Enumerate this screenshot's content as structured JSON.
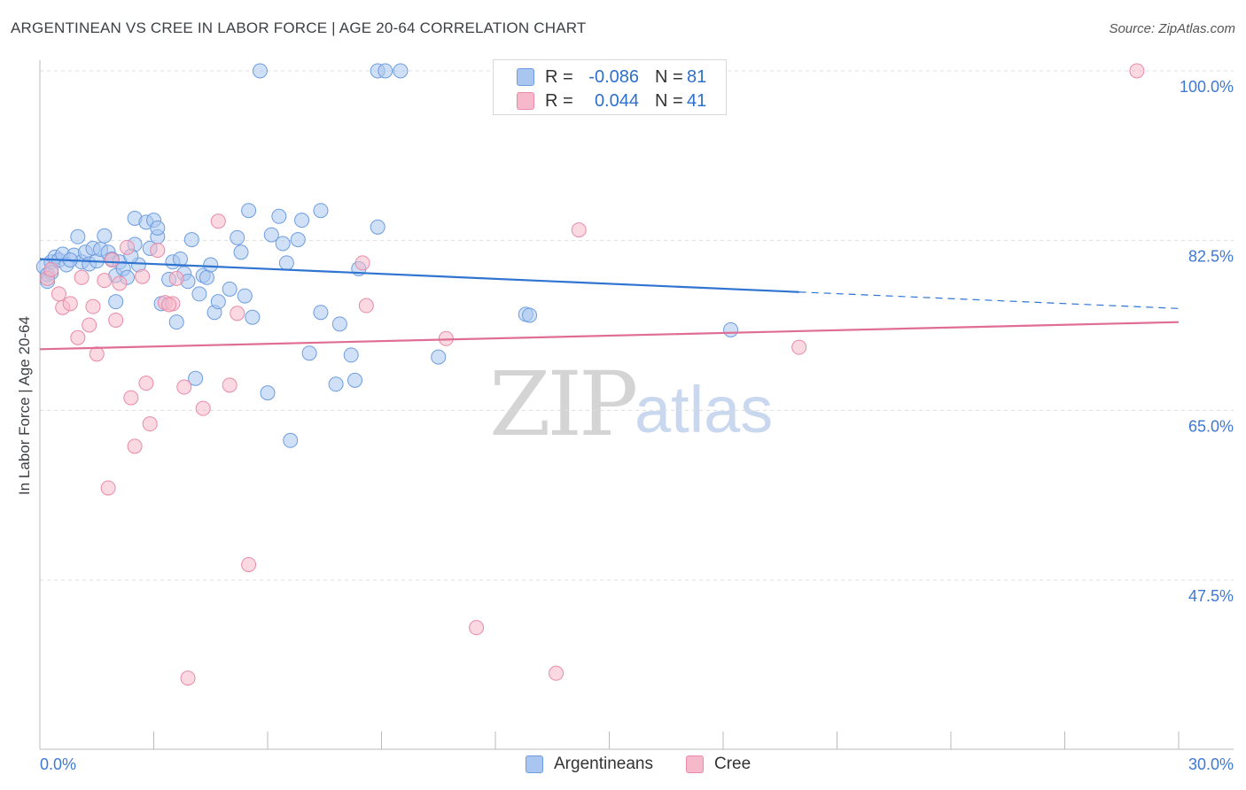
{
  "title": "ARGENTINEAN VS CREE IN LABOR FORCE | AGE 20-64 CORRELATION CHART",
  "source": "Source: ZipAtlas.com",
  "colors": {
    "blue_fill": "#a9c6f0",
    "blue_stroke": "#6d9de0",
    "blue_line": "#2f74d0",
    "pink_fill": "#f5b9cb",
    "pink_stroke": "#e98aa8",
    "pink_line": "#e06d92",
    "tick_label": "#3f78d1",
    "grid": "#dddddd"
  },
  "legend": {
    "rows": [
      {
        "r_label": "R =",
        "r_value": "-0.086",
        "n_label": "N =",
        "n_value": "81"
      },
      {
        "r_label": "R =",
        "r_value": "0.044",
        "n_label": "N =",
        "n_value": "41"
      }
    ]
  },
  "series_labels": {
    "blue": "Argentineans",
    "pink": "Cree"
  },
  "watermark": {
    "zip": "ZIP",
    "atlas": "atlas"
  },
  "chart_data": {
    "type": "scatter",
    "title": "ARGENTINEAN VS CREE IN LABOR FORCE | AGE 20-64 CORRELATION CHART",
    "xlabel": "",
    "ylabel": "In Labor Force | Age 20-64",
    "xlim": [
      0,
      30
    ],
    "ylim": [
      32,
      102
    ],
    "x_tick_labels": [
      "0.0%",
      "30.0%"
    ],
    "y_ticks": [
      47.5,
      65.0,
      82.5,
      100.0
    ],
    "y_tick_labels": [
      "47.5%",
      "65.0%",
      "82.5%",
      "100.0%"
    ],
    "series": [
      {
        "name": "Argentineans",
        "r": -0.086,
        "n": 81,
        "trend": {
          "x0": 0,
          "y0": 80.6,
          "x1": 20.0,
          "y1": 77.2,
          "dash_to_x": 30,
          "dash_to_y": 75.5
        },
        "points": [
          [
            0.1,
            79.8
          ],
          [
            0.2,
            79.0
          ],
          [
            0.3,
            80.3
          ],
          [
            0.4,
            80.8
          ],
          [
            0.5,
            80.5
          ],
          [
            0.3,
            79.2
          ],
          [
            0.6,
            81.1
          ],
          [
            0.7,
            80.0
          ],
          [
            0.9,
            81.0
          ],
          [
            1.0,
            82.9
          ],
          [
            1.1,
            80.3
          ],
          [
            1.2,
            81.3
          ],
          [
            1.3,
            80.1
          ],
          [
            1.4,
            81.7
          ],
          [
            1.5,
            80.4
          ],
          [
            1.6,
            81.6
          ],
          [
            1.7,
            83.0
          ],
          [
            1.8,
            81.3
          ],
          [
            1.9,
            80.6
          ],
          [
            2.0,
            78.9
          ],
          [
            2.0,
            76.2
          ],
          [
            2.1,
            80.3
          ],
          [
            2.2,
            79.6
          ],
          [
            2.3,
            78.7
          ],
          [
            2.5,
            82.1
          ],
          [
            2.6,
            80.0
          ],
          [
            2.5,
            84.8
          ],
          [
            2.8,
            84.4
          ],
          [
            2.9,
            81.7
          ],
          [
            3.0,
            84.6
          ],
          [
            3.1,
            82.9
          ],
          [
            3.1,
            83.8
          ],
          [
            3.2,
            76.0
          ],
          [
            3.4,
            78.5
          ],
          [
            3.5,
            80.3
          ],
          [
            3.6,
            74.1
          ],
          [
            3.7,
            80.6
          ],
          [
            3.8,
            79.1
          ],
          [
            3.9,
            78.3
          ],
          [
            4.0,
            82.6
          ],
          [
            4.1,
            68.3
          ],
          [
            4.2,
            77.0
          ],
          [
            4.3,
            78.9
          ],
          [
            4.4,
            78.7
          ],
          [
            4.5,
            80.0
          ],
          [
            4.6,
            75.1
          ],
          [
            4.7,
            76.2
          ],
          [
            5.0,
            77.5
          ],
          [
            5.2,
            82.8
          ],
          [
            5.3,
            81.3
          ],
          [
            5.4,
            76.8
          ],
          [
            5.5,
            85.6
          ],
          [
            5.6,
            74.6
          ],
          [
            5.8,
            100.0
          ],
          [
            6.0,
            66.8
          ],
          [
            6.1,
            83.1
          ],
          [
            6.3,
            85.0
          ],
          [
            6.4,
            82.2
          ],
          [
            6.5,
            80.2
          ],
          [
            6.6,
            61.9
          ],
          [
            6.8,
            82.6
          ],
          [
            6.9,
            84.6
          ],
          [
            7.1,
            70.9
          ],
          [
            7.4,
            75.1
          ],
          [
            7.4,
            85.6
          ],
          [
            7.8,
            67.7
          ],
          [
            7.9,
            73.9
          ],
          [
            8.2,
            70.7
          ],
          [
            8.3,
            68.1
          ],
          [
            8.4,
            79.6
          ],
          [
            8.9,
            83.9
          ],
          [
            8.9,
            100.0
          ],
          [
            9.1,
            100.0
          ],
          [
            9.5,
            100.0
          ],
          [
            10.5,
            70.5
          ],
          [
            12.8,
            74.9
          ],
          [
            12.9,
            74.8
          ],
          [
            18.2,
            73.3
          ],
          [
            0.2,
            78.3
          ],
          [
            0.8,
            80.5
          ],
          [
            2.4,
            80.9
          ]
        ]
      },
      {
        "name": "Cree",
        "r": 0.044,
        "n": 41,
        "trend": {
          "x0": 0,
          "y0": 71.3,
          "x1": 30,
          "y1": 74.1
        },
        "points": [
          [
            0.2,
            78.6
          ],
          [
            0.5,
            77.0
          ],
          [
            0.6,
            75.6
          ],
          [
            0.8,
            76.0
          ],
          [
            1.0,
            72.5
          ],
          [
            1.1,
            78.7
          ],
          [
            1.3,
            73.8
          ],
          [
            1.4,
            75.7
          ],
          [
            1.5,
            70.8
          ],
          [
            1.7,
            78.4
          ],
          [
            1.8,
            57.0
          ],
          [
            2.0,
            74.3
          ],
          [
            2.1,
            78.1
          ],
          [
            2.3,
            81.8
          ],
          [
            2.4,
            66.3
          ],
          [
            2.5,
            61.3
          ],
          [
            2.7,
            78.8
          ],
          [
            2.8,
            67.8
          ],
          [
            2.9,
            63.6
          ],
          [
            3.1,
            81.5
          ],
          [
            3.3,
            76.1
          ],
          [
            3.5,
            76.0
          ],
          [
            3.6,
            78.6
          ],
          [
            3.8,
            67.4
          ],
          [
            3.9,
            37.4
          ],
          [
            4.3,
            65.2
          ],
          [
            4.7,
            84.5
          ],
          [
            5.0,
            67.6
          ],
          [
            5.2,
            75.0
          ],
          [
            5.5,
            49.1
          ],
          [
            8.5,
            80.2
          ],
          [
            8.6,
            75.8
          ],
          [
            10.7,
            72.4
          ],
          [
            11.5,
            42.6
          ],
          [
            13.6,
            37.9
          ],
          [
            14.2,
            83.6
          ],
          [
            20.0,
            71.5
          ],
          [
            28.9,
            100.0
          ],
          [
            0.3,
            79.5
          ],
          [
            1.9,
            80.5
          ],
          [
            3.4,
            75.9
          ]
        ]
      }
    ]
  }
}
